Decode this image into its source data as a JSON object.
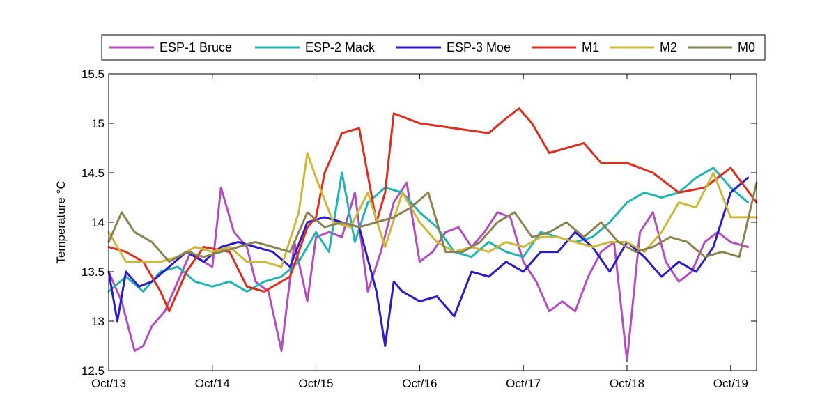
{
  "chart_data": {
    "type": "line",
    "title": "",
    "xlabel": "",
    "ylabel": "Temperature °C",
    "xlim": [
      "2000-10-13",
      "2000-10-19 06:00"
    ],
    "ylim": [
      12.5,
      15.5
    ],
    "yticks": [
      12.5,
      13,
      13.5,
      14,
      14.5,
      15,
      15.5
    ],
    "ytick_labels": [
      "12.5",
      "13",
      "13.5",
      "14",
      "14.5",
      "15",
      "15.5"
    ],
    "xticks": [
      "2000-10-13",
      "2000-10-14",
      "2000-10-15",
      "2000-10-16",
      "2000-10-17",
      "2000-10-18",
      "2000-10-19"
    ],
    "xtick_labels": [
      "Oct/13",
      "Oct/14",
      "Oct/15",
      "Oct/16",
      "Oct/17",
      "Oct/18",
      "Oct/19"
    ],
    "grid": false,
    "legend_position": "top, outside plot, single row",
    "series": [
      {
        "name": "ESP-1 Bruce",
        "color": "#B44DBF",
        "x": [
          "2000-10-13 00:00",
          "2000-10-13 03:00",
          "2000-10-13 06:00",
          "2000-10-13 08:00",
          "2000-10-13 10:00",
          "2000-10-13 13:00",
          "2000-10-13 16:00",
          "2000-10-13 19:00",
          "2000-10-13 22:00",
          "2000-10-14 00:00",
          "2000-10-14 02:00",
          "2000-10-14 05:00",
          "2000-10-14 08:00",
          "2000-10-14 10:00",
          "2000-10-14 13:00",
          "2000-10-14 16:00",
          "2000-10-14 19:00",
          "2000-10-14 22:00",
          "2000-10-15 00:00",
          "2000-10-15 03:00",
          "2000-10-15 06:00",
          "2000-10-15 09:00",
          "2000-10-15 12:00",
          "2000-10-15 15:00",
          "2000-10-15 18:00",
          "2000-10-15 21:00",
          "2000-10-16 00:00",
          "2000-10-16 03:00",
          "2000-10-16 06:00",
          "2000-10-16 09:00",
          "2000-10-16 12:00",
          "2000-10-16 15:00",
          "2000-10-16 18:00",
          "2000-10-16 21:00",
          "2000-10-17 00:00",
          "2000-10-17 03:00",
          "2000-10-17 06:00",
          "2000-10-17 09:00",
          "2000-10-17 12:00",
          "2000-10-17 15:00",
          "2000-10-17 18:00",
          "2000-10-17 21:00",
          "2000-10-18 00:00",
          "2000-10-18 03:00",
          "2000-10-18 06:00",
          "2000-10-18 09:00",
          "2000-10-18 12:00",
          "2000-10-18 15:00",
          "2000-10-18 18:00",
          "2000-10-18 21:00",
          "2000-10-19 00:00",
          "2000-10-19 04:00"
        ],
        "y": [
          13.5,
          13.2,
          12.7,
          12.75,
          12.95,
          13.1,
          13.4,
          13.7,
          13.6,
          13.55,
          14.35,
          13.9,
          13.75,
          13.4,
          13.3,
          12.7,
          13.8,
          13.2,
          13.85,
          13.9,
          13.85,
          14.3,
          13.3,
          13.7,
          14.2,
          14.4,
          13.6,
          13.7,
          13.9,
          13.95,
          13.75,
          13.9,
          14.1,
          14.05,
          13.6,
          13.4,
          13.1,
          13.2,
          13.1,
          13.45,
          13.7,
          13.8,
          12.6,
          13.9,
          14.1,
          13.6,
          13.4,
          13.5,
          13.8,
          13.9,
          13.8,
          13.75
        ]
      },
      {
        "name": "ESP-2 Mack",
        "color": "#22B3B3",
        "x": [
          "2000-10-13 00:00",
          "2000-10-13 04:00",
          "2000-10-13 08:00",
          "2000-10-13 12:00",
          "2000-10-13 16:00",
          "2000-10-13 20:00",
          "2000-10-14 00:00",
          "2000-10-14 04:00",
          "2000-10-14 08:00",
          "2000-10-14 12:00",
          "2000-10-14 16:00",
          "2000-10-14 20:00",
          "2000-10-15 00:00",
          "2000-10-15 03:00",
          "2000-10-15 06:00",
          "2000-10-15 09:00",
          "2000-10-15 12:00",
          "2000-10-15 16:00",
          "2000-10-15 20:00",
          "2000-10-16 00:00",
          "2000-10-16 04:00",
          "2000-10-16 08:00",
          "2000-10-16 12:00",
          "2000-10-16 16:00",
          "2000-10-16 20:00",
          "2000-10-17 00:00",
          "2000-10-17 04:00",
          "2000-10-17 08:00",
          "2000-10-17 12:00",
          "2000-10-17 16:00",
          "2000-10-17 20:00",
          "2000-10-18 00:00",
          "2000-10-18 04:00",
          "2000-10-18 08:00",
          "2000-10-18 12:00",
          "2000-10-18 16:00",
          "2000-10-18 20:00",
          "2000-10-19 00:00",
          "2000-10-19 04:00"
        ],
        "y": [
          13.3,
          13.45,
          13.3,
          13.5,
          13.55,
          13.4,
          13.35,
          13.4,
          13.3,
          13.4,
          13.45,
          13.6,
          13.9,
          13.7,
          14.5,
          13.8,
          14.2,
          14.35,
          14.3,
          14.1,
          13.95,
          13.7,
          13.65,
          13.8,
          13.7,
          13.65,
          13.9,
          13.85,
          13.8,
          13.85,
          14.0,
          14.2,
          14.3,
          14.25,
          14.3,
          14.45,
          14.55,
          14.35,
          14.2
        ]
      },
      {
        "name": "ESP-3 Moe",
        "color": "#2B1BC9",
        "x": [
          "2000-10-13 00:00",
          "2000-10-13 02:00",
          "2000-10-13 04:00",
          "2000-10-13 07:00",
          "2000-10-13 10:00",
          "2000-10-13 14:00",
          "2000-10-13 18:00",
          "2000-10-13 22:00",
          "2000-10-14 02:00",
          "2000-10-14 06:00",
          "2000-10-14 10:00",
          "2000-10-14 14:00",
          "2000-10-14 18:00",
          "2000-10-14 22:00",
          "2000-10-15 02:00",
          "2000-10-15 06:00",
          "2000-10-15 10:00",
          "2000-10-15 14:00",
          "2000-10-15 16:00",
          "2000-10-15 18:00",
          "2000-10-15 20:00",
          "2000-10-16 00:00",
          "2000-10-16 04:00",
          "2000-10-16 08:00",
          "2000-10-16 12:00",
          "2000-10-16 16:00",
          "2000-10-16 20:00",
          "2000-10-17 00:00",
          "2000-10-17 04:00",
          "2000-10-17 08:00",
          "2000-10-17 12:00",
          "2000-10-17 16:00",
          "2000-10-17 20:00",
          "2000-10-18 00:00",
          "2000-10-18 04:00",
          "2000-10-18 08:00",
          "2000-10-18 12:00",
          "2000-10-18 16:00",
          "2000-10-18 20:00",
          "2000-10-19 00:00",
          "2000-10-19 04:00"
        ],
        "y": [
          13.5,
          13.0,
          13.5,
          13.35,
          13.4,
          13.55,
          13.7,
          13.6,
          13.75,
          13.8,
          13.75,
          13.7,
          13.55,
          14.0,
          14.05,
          14.0,
          13.95,
          13.3,
          12.75,
          13.4,
          13.3,
          13.2,
          13.25,
          13.05,
          13.5,
          13.45,
          13.6,
          13.5,
          13.7,
          13.7,
          13.9,
          13.75,
          13.5,
          13.8,
          13.65,
          13.45,
          13.6,
          13.5,
          13.75,
          14.3,
          14.45
        ]
      },
      {
        "name": "M1",
        "color": "#DC2E1E",
        "x": [
          "2000-10-13 00:00",
          "2000-10-13 04:00",
          "2000-10-13 08:00",
          "2000-10-13 12:00",
          "2000-10-13 14:00",
          "2000-10-13 18:00",
          "2000-10-13 22:00",
          "2000-10-14 04:00",
          "2000-10-14 08:00",
          "2000-10-14 12:00",
          "2000-10-14 18:00",
          "2000-10-14 22:00",
          "2000-10-15 00:00",
          "2000-10-15 02:00",
          "2000-10-15 06:00",
          "2000-10-15 10:00",
          "2000-10-15 14:00",
          "2000-10-15 16:00",
          "2000-10-15 18:00",
          "2000-10-16 00:00",
          "2000-10-16 08:00",
          "2000-10-16 16:00",
          "2000-10-16 20:00",
          "2000-10-16 23:00",
          "2000-10-17 02:00",
          "2000-10-17 06:00",
          "2000-10-17 10:00",
          "2000-10-17 14:00",
          "2000-10-17 18:00",
          "2000-10-18 00:00",
          "2000-10-18 06:00",
          "2000-10-18 12:00",
          "2000-10-18 18:00",
          "2000-10-19 00:00",
          "2000-10-19 06:00"
        ],
        "y": [
          13.75,
          13.7,
          13.6,
          13.3,
          13.1,
          13.5,
          13.75,
          13.7,
          13.35,
          13.3,
          13.45,
          13.95,
          14.05,
          14.5,
          14.9,
          14.95,
          14.0,
          14.3,
          15.1,
          15.0,
          14.95,
          14.9,
          15.05,
          15.15,
          15.0,
          14.7,
          14.75,
          14.8,
          14.6,
          14.6,
          14.5,
          14.3,
          14.35,
          14.55,
          14.2
        ]
      },
      {
        "name": "M2",
        "color": "#CDB83A",
        "x": [
          "2000-10-13 00:00",
          "2000-10-13 04:00",
          "2000-10-13 08:00",
          "2000-10-13 12:00",
          "2000-10-13 16:00",
          "2000-10-13 20:00",
          "2000-10-14 00:00",
          "2000-10-14 04:00",
          "2000-10-14 08:00",
          "2000-10-14 12:00",
          "2000-10-14 16:00",
          "2000-10-14 20:00",
          "2000-10-14 22:00",
          "2000-10-15 00:00",
          "2000-10-15 04:00",
          "2000-10-15 08:00",
          "2000-10-15 12:00",
          "2000-10-15 16:00",
          "2000-10-15 20:00",
          "2000-10-16 00:00",
          "2000-10-16 04:00",
          "2000-10-16 08:00",
          "2000-10-16 12:00",
          "2000-10-16 16:00",
          "2000-10-16 20:00",
          "2000-10-17 00:00",
          "2000-10-17 04:00",
          "2000-10-17 08:00",
          "2000-10-17 12:00",
          "2000-10-17 16:00",
          "2000-10-17 20:00",
          "2000-10-18 00:00",
          "2000-10-18 04:00",
          "2000-10-18 08:00",
          "2000-10-18 12:00",
          "2000-10-18 16:00",
          "2000-10-18 20:00",
          "2000-10-19 00:00",
          "2000-10-19 06:00"
        ],
        "y": [
          13.9,
          13.6,
          13.6,
          13.6,
          13.65,
          13.75,
          13.7,
          13.75,
          13.6,
          13.6,
          13.55,
          14.1,
          14.7,
          14.45,
          14.0,
          13.95,
          14.3,
          13.75,
          14.3,
          14.0,
          13.8,
          13.7,
          13.75,
          13.7,
          13.8,
          13.75,
          13.85,
          13.85,
          13.8,
          13.75,
          13.8,
          13.8,
          13.7,
          13.9,
          14.2,
          14.15,
          14.5,
          14.05,
          14.05
        ]
      },
      {
        "name": "M0",
        "color": "#8A8252",
        "x": [
          "2000-10-13 00:00",
          "2000-10-13 03:00",
          "2000-10-13 06:00",
          "2000-10-13 10:00",
          "2000-10-13 14:00",
          "2000-10-13 18:00",
          "2000-10-13 22:00",
          "2000-10-14 02:00",
          "2000-10-14 06:00",
          "2000-10-14 10:00",
          "2000-10-14 14:00",
          "2000-10-14 18:00",
          "2000-10-14 22:00",
          "2000-10-15 02:00",
          "2000-10-15 06:00",
          "2000-10-15 10:00",
          "2000-10-15 14:00",
          "2000-10-15 18:00",
          "2000-10-15 22:00",
          "2000-10-16 02:00",
          "2000-10-16 06:00",
          "2000-10-16 10:00",
          "2000-10-16 14:00",
          "2000-10-16 18:00",
          "2000-10-16 22:00",
          "2000-10-17 02:00",
          "2000-10-17 06:00",
          "2000-10-17 10:00",
          "2000-10-17 14:00",
          "2000-10-17 18:00",
          "2000-10-17 22:00",
          "2000-10-18 02:00",
          "2000-10-18 06:00",
          "2000-10-18 10:00",
          "2000-10-18 14:00",
          "2000-10-18 18:00",
          "2000-10-18 22:00",
          "2000-10-19 02:00",
          "2000-10-19 06:00"
        ],
        "y": [
          13.8,
          14.1,
          13.9,
          13.8,
          13.6,
          13.7,
          13.65,
          13.7,
          13.75,
          13.8,
          13.75,
          13.7,
          14.1,
          13.95,
          14.0,
          13.95,
          14.0,
          14.05,
          14.15,
          14.3,
          13.7,
          13.7,
          13.8,
          14.0,
          14.1,
          13.85,
          13.9,
          14.0,
          13.85,
          14.0,
          13.8,
          13.7,
          13.75,
          13.85,
          13.8,
          13.65,
          13.7,
          13.65,
          14.4
        ]
      }
    ]
  }
}
